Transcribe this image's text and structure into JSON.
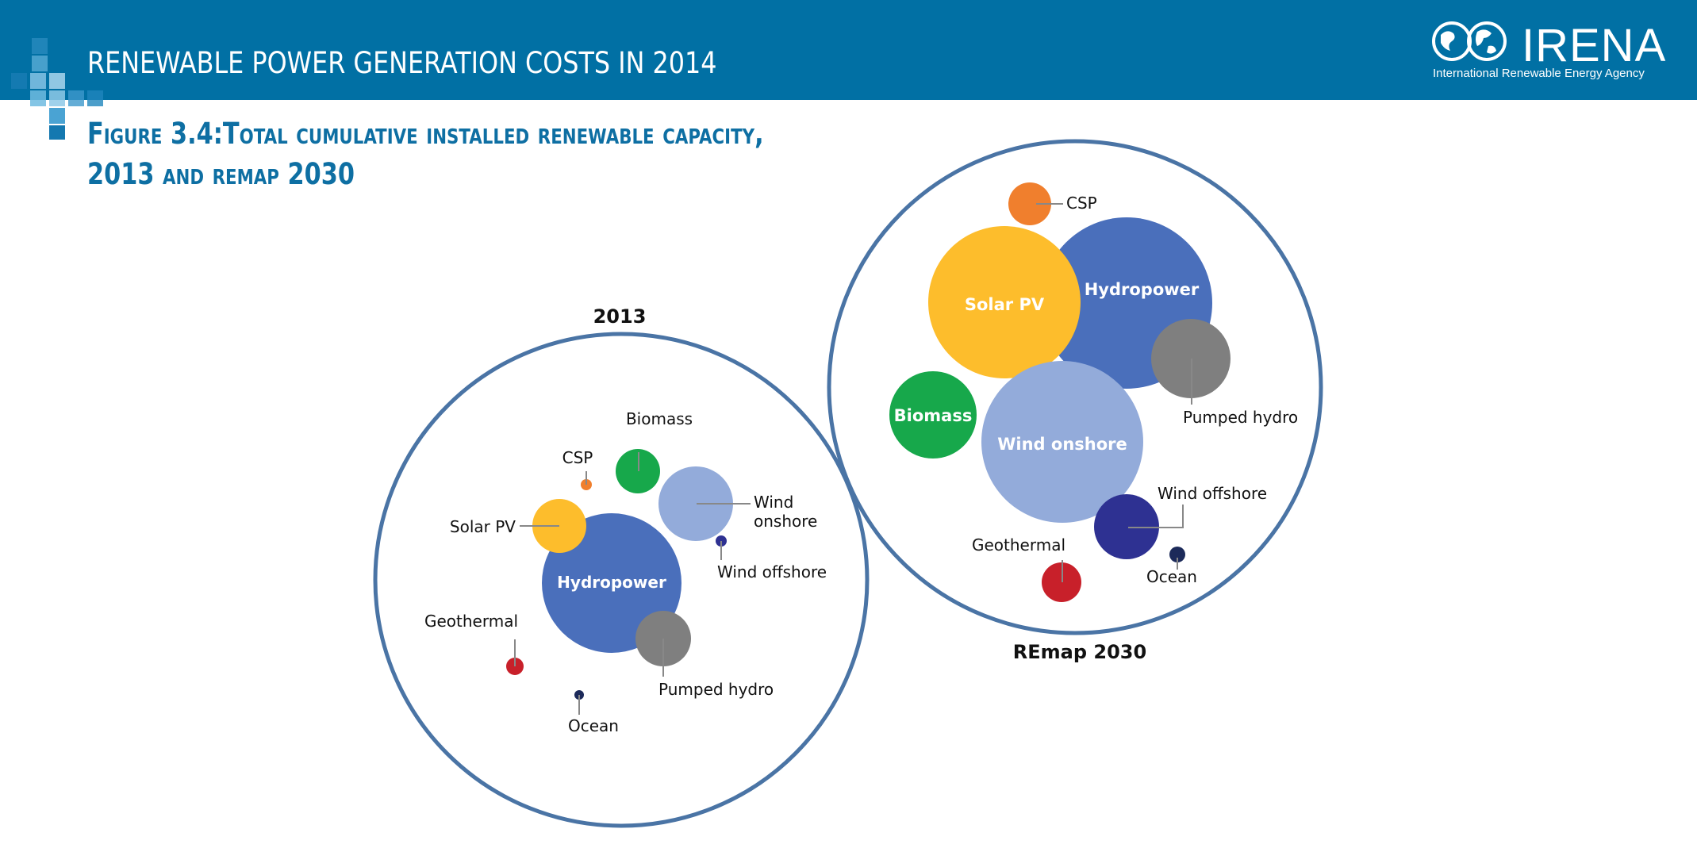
{
  "header": {
    "title": "RENEWABLE POWER GENERATION COSTS IN 2014",
    "logo_text": "IRENA",
    "logo_subtitle": "International Renewable Energy Agency"
  },
  "figure": {
    "title_line1": "Figure 3.4:Total cumulative installed renewable capacity,",
    "title_line2": "2013 and remap 2030"
  },
  "colors": {
    "header_blue": "#0170a4",
    "title_blue": "#0e6fa3",
    "outline": "#4a74a5",
    "hydropower": "#4a6fbb",
    "solar_pv": "#fdbd2c",
    "wind_onshore": "#93abda",
    "wind_offshore": "#2e3192",
    "biomass": "#17a84b",
    "csp": "#f07f2d",
    "pumped_hydro": "#7f7f7f",
    "geothermal": "#c8202a",
    "ocean": "#1c2a5a"
  },
  "panels": [
    {
      "label": "2013",
      "bubbles": [
        {
          "name": "Hydropower",
          "color": "#4a6fbb"
        },
        {
          "name": "Pumped hydro",
          "color": "#7f7f7f"
        },
        {
          "name": "Wind onshore",
          "color": "#93abda"
        },
        {
          "name": "Biomass",
          "color": "#17a84b"
        },
        {
          "name": "Solar PV",
          "color": "#fdbd2c"
        },
        {
          "name": "CSP",
          "color": "#f07f2d"
        },
        {
          "name": "Wind offshore",
          "color": "#2e3192"
        },
        {
          "name": "Geothermal",
          "color": "#c8202a"
        },
        {
          "name": "Ocean",
          "color": "#1c2a5a"
        }
      ]
    },
    {
      "label": "REmap 2030",
      "bubbles": [
        {
          "name": "Hydropower",
          "color": "#4a6fbb"
        },
        {
          "name": "Solar PV",
          "color": "#fdbd2c"
        },
        {
          "name": "Wind onshore",
          "color": "#93abda"
        },
        {
          "name": "Biomass",
          "color": "#17a84b"
        },
        {
          "name": "Pumped hydro",
          "color": "#7f7f7f"
        },
        {
          "name": "Wind offshore",
          "color": "#2e3192"
        },
        {
          "name": "CSP",
          "color": "#f07f2d"
        },
        {
          "name": "Geothermal",
          "color": "#c8202a"
        },
        {
          "name": "Ocean",
          "color": "#1c2a5a"
        }
      ]
    }
  ]
}
